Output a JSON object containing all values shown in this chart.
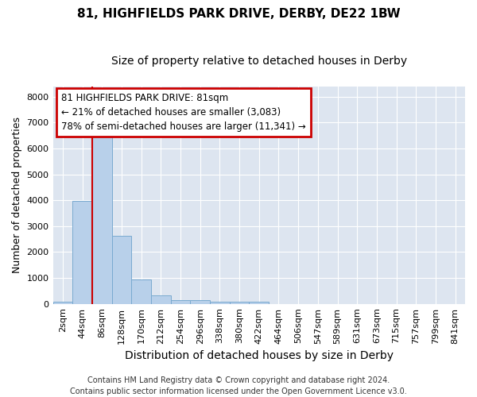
{
  "title": "81, HIGHFIELDS PARK DRIVE, DERBY, DE22 1BW",
  "subtitle": "Size of property relative to detached houses in Derby",
  "xlabel": "Distribution of detached houses by size in Derby",
  "ylabel": "Number of detached properties",
  "bin_labels": [
    "2sqm",
    "44sqm",
    "86sqm",
    "128sqm",
    "170sqm",
    "212sqm",
    "254sqm",
    "296sqm",
    "338sqm",
    "380sqm",
    "422sqm",
    "464sqm",
    "506sqm",
    "547sqm",
    "589sqm",
    "631sqm",
    "673sqm",
    "715sqm",
    "757sqm",
    "799sqm",
    "841sqm"
  ],
  "bar_values": [
    70,
    3980,
    6600,
    2620,
    950,
    320,
    130,
    130,
    80,
    80,
    80,
    0,
    0,
    0,
    0,
    0,
    0,
    0,
    0,
    0,
    0
  ],
  "bar_color": "#b8d0ea",
  "bar_edge_color": "#7aaad0",
  "property_line_x": 2.0,
  "property_line_color": "#cc0000",
  "annotation_line1": "81 HIGHFIELDS PARK DRIVE: 81sqm",
  "annotation_line2": "← 21% of detached houses are smaller (3,083)",
  "annotation_line3": "78% of semi-detached houses are larger (11,341) →",
  "annotation_box_color": "#cc0000",
  "ylim": [
    0,
    8400
  ],
  "yticks": [
    0,
    1000,
    2000,
    3000,
    4000,
    5000,
    6000,
    7000,
    8000
  ],
  "fig_bg_color": "#ffffff",
  "plot_bg_color": "#dde5f0",
  "grid_color": "#ffffff",
  "footer_line1": "Contains HM Land Registry data © Crown copyright and database right 2024.",
  "footer_line2": "Contains public sector information licensed under the Open Government Licence v3.0.",
  "title_fontsize": 11,
  "subtitle_fontsize": 10,
  "xlabel_fontsize": 10,
  "ylabel_fontsize": 9,
  "tick_fontsize": 8,
  "footer_fontsize": 7,
  "annot_fontsize": 8.5
}
